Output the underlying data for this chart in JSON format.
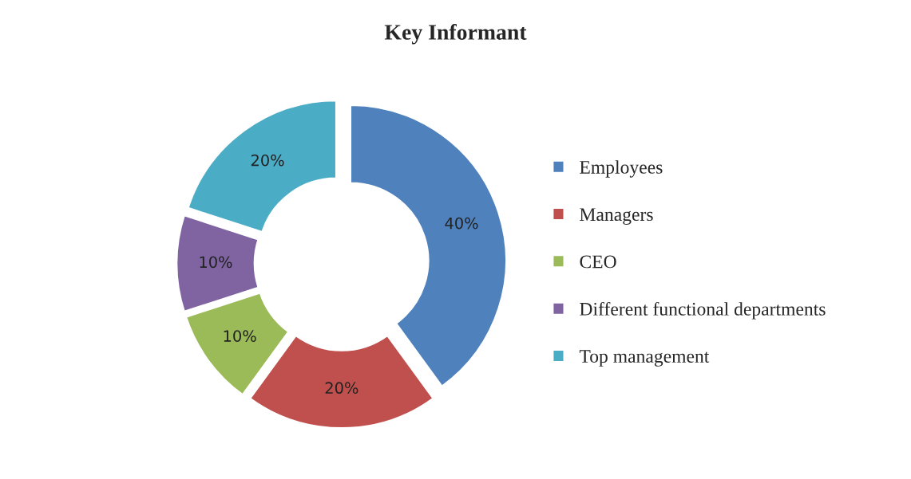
{
  "chart_data": {
    "type": "donut",
    "title": "Key Informant",
    "categories": [
      "Employees",
      "Managers",
      "CEO",
      "Different functional departments",
      "Top management"
    ],
    "values": [
      40,
      20,
      10,
      10,
      20
    ],
    "colors": [
      "#4f81bd",
      "#c0504d",
      "#9bbb59",
      "#8064a2",
      "#4bacc6"
    ],
    "value_labels": [
      "40%",
      "20%",
      "10%",
      "10%",
      "20%"
    ],
    "legend": "right"
  }
}
